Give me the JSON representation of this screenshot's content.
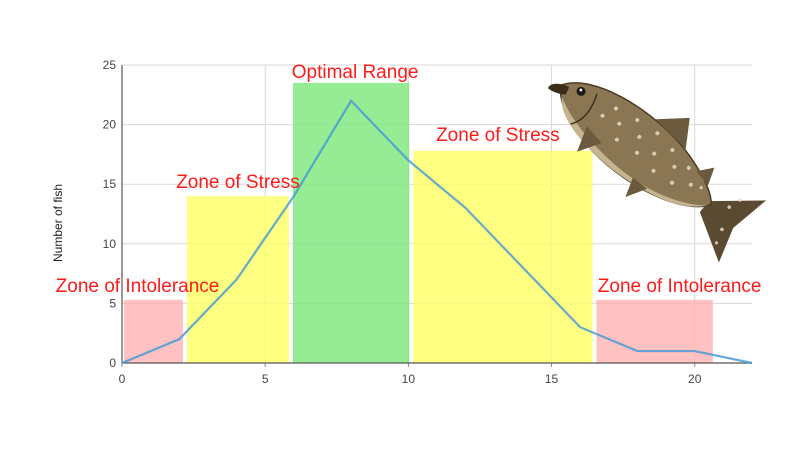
{
  "chart_data": {
    "type": "line",
    "title": "",
    "xlabel": "",
    "ylabel": "Number of fish",
    "xlim": [
      0,
      22
    ],
    "ylim": [
      0,
      25
    ],
    "x_ticks": [
      0,
      5,
      10,
      15,
      20
    ],
    "y_ticks": [
      0,
      5,
      10,
      15,
      20,
      25
    ],
    "grid": true,
    "series": [
      {
        "color": "#4a9bd4",
        "x": [
          0,
          2,
          4,
          6,
          8,
          10,
          12,
          14,
          16,
          18,
          20,
          22
        ],
        "y": [
          0,
          2,
          7,
          14,
          22,
          17,
          13,
          8,
          3,
          1,
          1,
          0
        ]
      }
    ],
    "zones": [
      {
        "label": "Zone of Intolerance",
        "x_start": 0,
        "x_end": 2.2,
        "value": 5.3,
        "color": "#ffb3b3"
      },
      {
        "label": "Zone of Stress",
        "x_start": 2.2,
        "x_end": 5.9,
        "value": 14,
        "color": "#ffff66"
      },
      {
        "label": "Optimal Range",
        "x_start": 5.9,
        "x_end": 10.1,
        "value": 23.5,
        "color": "#7ee87e"
      },
      {
        "label": "Zone of Stress",
        "x_start": 10.1,
        "x_end": 16.5,
        "value": 17.8,
        "color": "#ffff66"
      },
      {
        "label": "Zone of Intolerance",
        "x_start": 16.5,
        "x_end": 20.7,
        "value": 5.3,
        "color": "#ffb3b3"
      }
    ]
  },
  "illustration": {
    "icon": "fish-icon"
  }
}
